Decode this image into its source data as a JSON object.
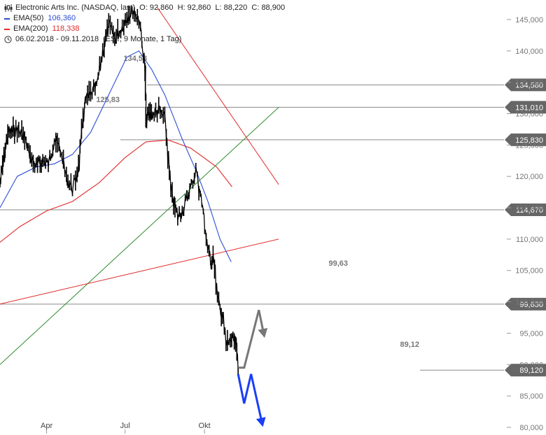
{
  "legend": {
    "title": "Electronic Arts Inc. (NASDAQ, last)",
    "ohlc": "O: 92,860  H: 92,860  L: 88,220  C: 88,900",
    "ema50_label": "EMA(50)",
    "ema50_value": "106,360",
    "ema200_label": "EMA(200)",
    "ema200_value": "118,338",
    "range_text": "06.02.2018 - 09.11.2018",
    "range_meta": "(EST, 9 Monate, 1 Tag)",
    "ohlc_icon": "candlestick-icon",
    "clock_icon": "clock-icon"
  },
  "colors": {
    "ema50": "#2b4fd6",
    "ema200": "#e02b2b",
    "price": "#000000",
    "level_line": "#8a8a8a",
    "level_tag": "#666666",
    "trend_green": "#2e8b2e",
    "trend_red": "#e02b2b",
    "arrow_gray": "#777777",
    "arrow_blue": "#1b3ff5"
  },
  "chart_data": {
    "type": "line",
    "title": "Electronic Arts Inc. (NASDAQ, last)",
    "xlabel": "",
    "ylabel": "",
    "ylim": [
      80000,
      147000
    ],
    "grid": false,
    "y_ticks": [
      "80,000",
      "85,000",
      "90,000",
      "95,000",
      "100,000",
      "105,000",
      "110,000",
      "115,000",
      "120,000",
      "125,000",
      "130,000",
      "135,000",
      "140,000",
      "145,000"
    ],
    "y_tick_values": [
      80000,
      85000,
      90000,
      95000,
      100000,
      105000,
      110000,
      115000,
      120000,
      125000,
      130000,
      135000,
      140000,
      145000
    ],
    "x_ticks": [
      "Apr",
      "Jul",
      "Okt"
    ],
    "x_tick_dates": [
      "2018-04-01",
      "2018-07-01",
      "2018-10-01"
    ],
    "series": [
      {
        "name": "Electronic Arts Inc.",
        "x": [
          "2018-02-06",
          "2018-02-15",
          "2018-02-26",
          "2018-03-05",
          "2018-03-13",
          "2018-03-20",
          "2018-03-26",
          "2018-04-03",
          "2018-04-10",
          "2018-04-17",
          "2018-04-24",
          "2018-05-01",
          "2018-05-08",
          "2018-05-15",
          "2018-05-22",
          "2018-05-29",
          "2018-06-05",
          "2018-06-12",
          "2018-06-19",
          "2018-06-26",
          "2018-07-03",
          "2018-07-10",
          "2018-07-17",
          "2018-07-24",
          "2018-07-25",
          "2018-07-27",
          "2018-08-02",
          "2018-08-09",
          "2018-08-16",
          "2018-08-23",
          "2018-08-31",
          "2018-09-07",
          "2018-09-14",
          "2018-09-21",
          "2018-09-28",
          "2018-10-03",
          "2018-10-08",
          "2018-10-11",
          "2018-10-16",
          "2018-10-22",
          "2018-10-26",
          "2018-10-31",
          "2018-11-06",
          "2018-11-09"
        ],
        "values": [
          119000,
          127000,
          127500,
          126500,
          123000,
          121500,
          122500,
          122000,
          126000,
          124000,
          119500,
          118000,
          121500,
          132000,
          133000,
          134600,
          140000,
          144000,
          142000,
          143500,
          145500,
          146500,
          145000,
          137000,
          129000,
          129500,
          130000,
          130500,
          129000,
          117500,
          113500,
          115000,
          118000,
          121000,
          115500,
          110000,
          106000,
          107500,
          100300,
          97500,
          93000,
          94000,
          93500,
          88900
        ]
      },
      {
        "name": "EMA(50)",
        "x": [
          "2018-02-06",
          "2018-02-26",
          "2018-03-20",
          "2018-04-10",
          "2018-05-01",
          "2018-05-22",
          "2018-06-12",
          "2018-07-03",
          "2018-07-17",
          "2018-08-01",
          "2018-08-16",
          "2018-09-05",
          "2018-09-21",
          "2018-10-05",
          "2018-10-19",
          "2018-11-01"
        ],
        "values": [
          115000,
          120000,
          121500,
          122000,
          123500,
          127000,
          133000,
          139000,
          140000,
          137000,
          133000,
          126000,
          121000,
          116000,
          110000,
          106360
        ]
      },
      {
        "name": "EMA(200)",
        "x": [
          "2018-02-06",
          "2018-03-01",
          "2018-04-01",
          "2018-05-01",
          "2018-06-01",
          "2018-07-01",
          "2018-07-25",
          "2018-08-20",
          "2018-09-15",
          "2018-10-15",
          "2018-11-02"
        ],
        "values": [
          109500,
          112000,
          114500,
          116000,
          119000,
          123000,
          125500,
          125800,
          124500,
          121500,
          118338
        ]
      }
    ],
    "levels": [
      {
        "value": 134580,
        "tag": "134,580",
        "note": "134,58"
      },
      {
        "value": 131010,
        "tag": "131,010",
        "note": ""
      },
      {
        "value": 125830,
        "tag": "125,830",
        "note": "125,83"
      },
      {
        "value": 114670,
        "tag": "114,670",
        "note": ""
      },
      {
        "value": 99630,
        "tag": "99,630",
        "note": "99,63"
      },
      {
        "value": 89120,
        "tag": "89,120",
        "note": "89,12"
      }
    ],
    "trendlines": [
      {
        "color": "green",
        "from": [
          "2018-02-06",
          90000
        ],
        "to": [
          "2018-12-26",
          131000
        ]
      },
      {
        "color": "red",
        "from": [
          "2018-02-06",
          99650
        ],
        "to": [
          "2018-12-26",
          110000
        ]
      },
      {
        "color": "red",
        "from": [
          "2018-08-07",
          147000
        ],
        "to": [
          "2018-12-26",
          118700
        ]
      }
    ],
    "projections": [
      {
        "color": "gray",
        "points": [
          [
            "2018-11-09",
            89500
          ],
          [
            "2018-11-16",
            89500
          ],
          [
            "2018-12-03",
            98700
          ],
          [
            "2018-12-09",
            94700
          ]
        ]
      },
      {
        "color": "blue",
        "points": [
          [
            "2018-11-09",
            88500
          ],
          [
            "2018-11-16",
            83800
          ],
          [
            "2018-11-24",
            88500
          ],
          [
            "2018-12-07",
            80500
          ]
        ]
      }
    ]
  }
}
